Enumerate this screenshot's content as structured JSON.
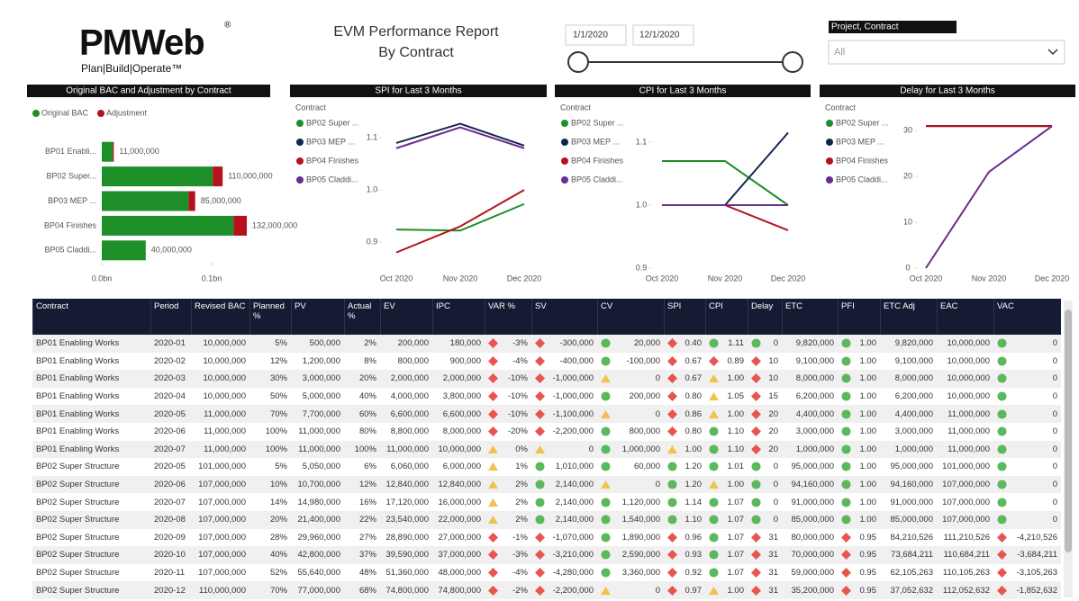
{
  "header": {
    "logo": "PMWeb",
    "registered": "®",
    "tagline": "Plan|Build|Operate™",
    "title": "EVM Performance Report",
    "subtitle": "By Contract"
  },
  "filters": {
    "date_start": "1/1/2020",
    "date_end": "12/1/2020",
    "slicer_title": "Project, Contract",
    "slicer_value": "All"
  },
  "chart_data": [
    {
      "type": "bar",
      "orientation": "horizontal",
      "stacked": true,
      "title": "Original BAC and Adjustment by Contract",
      "categories": [
        "BP01 Enabli...",
        "BP02 Super...",
        "BP03 MEP ...",
        "BP04 Finishes",
        "BP05 Claddi..."
      ],
      "series": [
        {
          "name": "Original BAC",
          "color": "#1f8f2a",
          "values": [
            10000000,
            101000000,
            79000000,
            120000000,
            40000000
          ]
        },
        {
          "name": "Adjustment",
          "color": "#b5121b",
          "values": [
            1000000,
            9000000,
            6000000,
            12000000,
            0
          ]
        }
      ],
      "data_labels": [
        "11,000,000",
        "110,000,000",
        "85,000,000",
        "132,000,000",
        "40,000,000"
      ],
      "xlim": [
        0,
        150000000
      ],
      "xticks": [
        {
          "value": 0,
          "label": "0.0bn"
        },
        {
          "value": 100000000,
          "label": "0.1bn"
        }
      ]
    },
    {
      "type": "line",
      "title": "SPI for Last 3 Months",
      "legend_title": "Contract",
      "categories": [
        "Oct 2020",
        "Nov 2020",
        "Dec 2020"
      ],
      "series": [
        {
          "name": "BP02 Super ...",
          "color": "#1f8f2a",
          "values": [
            0.924,
            0.922,
            0.973
          ]
        },
        {
          "name": "BP03 MEP ...",
          "color": "#14264f",
          "values": [
            1.09,
            1.127,
            1.085
          ]
        },
        {
          "name": "BP04 Finishes",
          "color": "#b5121b",
          "values": [
            0.88,
            0.93,
            1.0
          ]
        },
        {
          "name": "BP05 Claddi...",
          "color": "#6a2c91",
          "values": [
            1.08,
            1.12,
            1.08
          ]
        }
      ],
      "ylim": [
        0.85,
        1.14
      ],
      "yticks": [
        0.9,
        {
          "value": 1,
          "label": "1.0"
        },
        1.1
      ]
    },
    {
      "type": "line",
      "title": "CPI for Last 3 Months",
      "legend_title": "Contract",
      "categories": [
        "Oct 2020",
        "Nov 2020",
        "Dec 2020"
      ],
      "series": [
        {
          "name": "BP02 Super ...",
          "color": "#1f8f2a",
          "values": [
            1.07,
            1.07,
            1.0
          ]
        },
        {
          "name": "BP03 MEP ...",
          "color": "#14264f",
          "values": [
            1.0,
            1.0,
            1.115
          ]
        },
        {
          "name": "BP04 Finishes",
          "color": "#b5121b",
          "values": [
            1.0,
            1.0,
            0.96
          ]
        },
        {
          "name": "BP05 Claddi...",
          "color": "#6a2c91",
          "values": [
            1.0,
            1.0,
            1.0
          ]
        }
      ],
      "ylim": [
        0.9,
        1.13
      ],
      "yticks": [
        0.9,
        {
          "value": 1,
          "label": "1.0"
        },
        1.1
      ]
    },
    {
      "type": "line",
      "title": "Delay for Last 3 Months",
      "legend_title": "Contract",
      "categories": [
        "Oct 2020",
        "Nov 2020",
        "Dec 2020"
      ],
      "series": [
        {
          "name": "BP02 Super ...",
          "color": "#1f8f2a",
          "values": [
            31,
            31,
            31
          ]
        },
        {
          "name": "BP03 MEP ...",
          "color": "#14264f",
          "values": [
            31,
            31,
            31
          ]
        },
        {
          "name": "BP04 Finishes",
          "color": "#b5121b",
          "values": [
            31,
            31,
            31
          ]
        },
        {
          "name": "BP05 Claddi...",
          "color": "#6a2c91",
          "values": [
            0,
            21,
            31
          ]
        }
      ],
      "ylim": [
        0,
        33
      ],
      "yticks": [
        0,
        10,
        20,
        30
      ]
    }
  ],
  "table": {
    "columns": [
      "Contract",
      "Period",
      "Revised BAC",
      "Planned %",
      "PV",
      "Actual %",
      "EV",
      "IPC",
      "VAR %",
      "SV",
      "CV",
      "SPI",
      "CPI",
      "Delay",
      "ETC",
      "PFI",
      "ETC Adj",
      "EAC",
      "VAC"
    ],
    "rows": [
      [
        "BP01 Enabling Works",
        "2020-01",
        "10,000,000",
        "5%",
        "500,000",
        "2%",
        "200,000",
        "180,000",
        "-3%",
        "-300,000",
        "20,000",
        "0.40",
        "1.11",
        "0",
        "9,820,000",
        "1.00",
        "9,820,000",
        "10,000,000",
        "0"
      ],
      [
        "BP01 Enabling Works",
        "2020-02",
        "10,000,000",
        "12%",
        "1,200,000",
        "8%",
        "800,000",
        "900,000",
        "-4%",
        "-400,000",
        "-100,000",
        "0.67",
        "0.89",
        "10",
        "9,100,000",
        "1.00",
        "9,100,000",
        "10,000,000",
        "0"
      ],
      [
        "BP01 Enabling Works",
        "2020-03",
        "10,000,000",
        "30%",
        "3,000,000",
        "20%",
        "2,000,000",
        "2,000,000",
        "-10%",
        "-1,000,000",
        "0",
        "0.67",
        "1.00",
        "10",
        "8,000,000",
        "1.00",
        "8,000,000",
        "10,000,000",
        "0"
      ],
      [
        "BP01 Enabling Works",
        "2020-04",
        "10,000,000",
        "50%",
        "5,000,000",
        "40%",
        "4,000,000",
        "3,800,000",
        "-10%",
        "-1,000,000",
        "200,000",
        "0.80",
        "1.05",
        "15",
        "6,200,000",
        "1.00",
        "6,200,000",
        "10,000,000",
        "0"
      ],
      [
        "BP01 Enabling Works",
        "2020-05",
        "11,000,000",
        "70%",
        "7,700,000",
        "60%",
        "6,600,000",
        "6,600,000",
        "-10%",
        "-1,100,000",
        "0",
        "0.86",
        "1.00",
        "20",
        "4,400,000",
        "1.00",
        "4,400,000",
        "11,000,000",
        "0"
      ],
      [
        "BP01 Enabling Works",
        "2020-06",
        "11,000,000",
        "100%",
        "11,000,000",
        "80%",
        "8,800,000",
        "8,000,000",
        "-20%",
        "-2,200,000",
        "800,000",
        "0.80",
        "1.10",
        "20",
        "3,000,000",
        "1.00",
        "3,000,000",
        "11,000,000",
        "0"
      ],
      [
        "BP01 Enabling Works",
        "2020-07",
        "11,000,000",
        "100%",
        "11,000,000",
        "100%",
        "11,000,000",
        "10,000,000",
        "0%",
        "0",
        "1,000,000",
        "1.00",
        "1.10",
        "20",
        "1,000,000",
        "1.00",
        "1,000,000",
        "11,000,000",
        "0"
      ],
      [
        "BP02 Super Structure",
        "2020-05",
        "101,000,000",
        "5%",
        "5,050,000",
        "6%",
        "6,060,000",
        "6,000,000",
        "1%",
        "1,010,000",
        "60,000",
        "1.20",
        "1.01",
        "0",
        "95,000,000",
        "1.00",
        "95,000,000",
        "101,000,000",
        "0"
      ],
      [
        "BP02 Super Structure",
        "2020-06",
        "107,000,000",
        "10%",
        "10,700,000",
        "12%",
        "12,840,000",
        "12,840,000",
        "2%",
        "2,140,000",
        "0",
        "1.20",
        "1.00",
        "0",
        "94,160,000",
        "1.00",
        "94,160,000",
        "107,000,000",
        "0"
      ],
      [
        "BP02 Super Structure",
        "2020-07",
        "107,000,000",
        "14%",
        "14,980,000",
        "16%",
        "17,120,000",
        "16,000,000",
        "2%",
        "2,140,000",
        "1,120,000",
        "1.14",
        "1.07",
        "0",
        "91,000,000",
        "1.00",
        "91,000,000",
        "107,000,000",
        "0"
      ],
      [
        "BP02 Super Structure",
        "2020-08",
        "107,000,000",
        "20%",
        "21,400,000",
        "22%",
        "23,540,000",
        "22,000,000",
        "2%",
        "2,140,000",
        "1,540,000",
        "1.10",
        "1.07",
        "0",
        "85,000,000",
        "1.00",
        "85,000,000",
        "107,000,000",
        "0"
      ],
      [
        "BP02 Super Structure",
        "2020-09",
        "107,000,000",
        "28%",
        "29,960,000",
        "27%",
        "28,890,000",
        "27,000,000",
        "-1%",
        "-1,070,000",
        "1,890,000",
        "0.96",
        "1.07",
        "31",
        "80,000,000",
        "0.95",
        "84,210,526",
        "111,210,526",
        "-4,210,526"
      ],
      [
        "BP02 Super Structure",
        "2020-10",
        "107,000,000",
        "40%",
        "42,800,000",
        "37%",
        "39,590,000",
        "37,000,000",
        "-3%",
        "-3,210,000",
        "2,590,000",
        "0.93",
        "1.07",
        "31",
        "70,000,000",
        "0.95",
        "73,684,211",
        "110,684,211",
        "-3,684,211"
      ],
      [
        "BP02 Super Structure",
        "2020-11",
        "107,000,000",
        "52%",
        "55,640,000",
        "48%",
        "51,360,000",
        "48,000,000",
        "-4%",
        "-4,280,000",
        "3,360,000",
        "0.92",
        "1.07",
        "31",
        "59,000,000",
        "0.95",
        "62,105,263",
        "110,105,263",
        "-3,105,263"
      ],
      [
        "BP02 Super Structure",
        "2020-12",
        "110,000,000",
        "70%",
        "77,000,000",
        "68%",
        "74,800,000",
        "74,800,000",
        "-2%",
        "-2,200,000",
        "0",
        "0.97",
        "1.00",
        "31",
        "35,200,000",
        "0.95",
        "37,052,632",
        "112,052,632",
        "-1,852,632"
      ]
    ],
    "status_columns": [
      8,
      9,
      10,
      11,
      12,
      13,
      15,
      18
    ],
    "status": [
      [
        "red",
        "red",
        "green",
        "red",
        "green",
        "green",
        "green",
        "green"
      ],
      [
        "red",
        "red",
        "green",
        "red",
        "red",
        "red",
        "green",
        "green"
      ],
      [
        "red",
        "red",
        "amber",
        "red",
        "amber",
        "red",
        "green",
        "green"
      ],
      [
        "red",
        "red",
        "green",
        "red",
        "amber",
        "red",
        "green",
        "green"
      ],
      [
        "red",
        "red",
        "amber",
        "red",
        "amber",
        "red",
        "green",
        "green"
      ],
      [
        "red",
        "red",
        "green",
        "red",
        "green",
        "red",
        "green",
        "green"
      ],
      [
        "amber",
        "amber",
        "green",
        "amber",
        "green",
        "red",
        "green",
        "green"
      ],
      [
        "amber",
        "green",
        "green",
        "green",
        "green",
        "green",
        "green",
        "green"
      ],
      [
        "amber",
        "green",
        "amber",
        "green",
        "amber",
        "green",
        "green",
        "green"
      ],
      [
        "amber",
        "green",
        "green",
        "green",
        "green",
        "green",
        "green",
        "green"
      ],
      [
        "amber",
        "green",
        "green",
        "green",
        "green",
        "green",
        "green",
        "green"
      ],
      [
        "red",
        "red",
        "green",
        "red",
        "green",
        "red",
        "red",
        "red"
      ],
      [
        "red",
        "red",
        "green",
        "red",
        "green",
        "red",
        "red",
        "red"
      ],
      [
        "red",
        "red",
        "green",
        "red",
        "green",
        "red",
        "red",
        "red"
      ],
      [
        "red",
        "red",
        "amber",
        "red",
        "amber",
        "red",
        "red",
        "red"
      ]
    ]
  }
}
